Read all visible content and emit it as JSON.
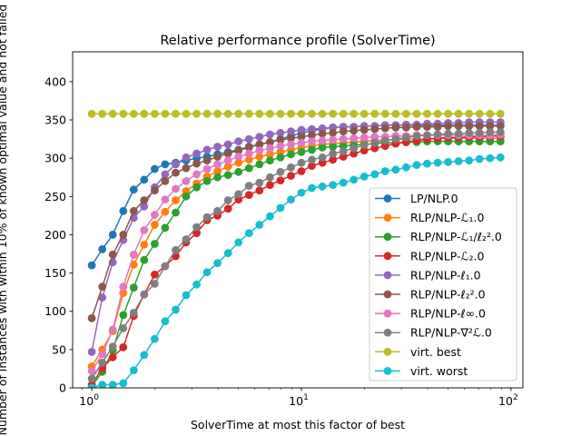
{
  "chart_data": {
    "type": "line",
    "title": "Relative performance profile (SolverTime)",
    "xlabel": "SolverTime at most this factor of best",
    "ylabel": "Number of instances with within 10% of known optimal value and not failed",
    "x_scale": "log",
    "xlim": [
      0.81,
      114
    ],
    "ylim": [
      0,
      439
    ],
    "x_ticks": [
      {
        "value": 1,
        "base": "10",
        "exp": "0"
      },
      {
        "value": 10,
        "base": "10",
        "exp": "1"
      },
      {
        "value": 100,
        "base": "10",
        "exp": "2"
      }
    ],
    "y_ticks": [
      0,
      50,
      100,
      150,
      200,
      250,
      300,
      350,
      400
    ],
    "grid": false,
    "legend_position": "lower-right",
    "x": [
      1,
      1.122,
      1.259,
      1.413,
      1.585,
      1.778,
      1.995,
      2.239,
      2.512,
      2.818,
      3.162,
      3.548,
      3.981,
      4.467,
      5.012,
      5.623,
      6.31,
      7.079,
      7.943,
      8.913,
      10,
      11.22,
      12.59,
      14.13,
      15.85,
      17.78,
      19.95,
      22.39,
      25.12,
      28.18,
      31.62,
      35.48,
      39.81,
      44.67,
      50.12,
      56.23,
      63.1,
      70.79,
      79.43,
      89.13
    ],
    "series": [
      {
        "name": "LP/NLP.0",
        "color": "#1f77b4",
        "values": [
          160,
          181,
          200,
          231,
          259,
          272,
          286,
          292,
          294,
          297,
          300,
          302,
          305,
          308,
          311,
          315,
          318,
          321,
          325,
          329,
          333,
          336,
          338,
          340,
          341,
          341,
          342,
          342,
          343,
          343,
          343,
          343,
          343,
          343,
          343,
          343,
          343,
          343,
          343,
          343
        ]
      },
      {
        "name": "RLP/NLP-ℒ₁.0",
        "color": "#ff7f0e",
        "values": [
          28,
          50,
          74,
          124,
          161,
          187,
          213,
          230,
          245,
          257,
          267,
          276,
          283,
          289,
          294,
          298,
          302,
          305,
          308,
          311,
          314,
          316,
          318,
          319,
          320,
          321,
          322,
          323,
          324,
          324,
          325,
          325,
          325,
          326,
          326,
          326,
          326,
          326,
          326,
          326
        ]
      },
      {
        "name": "RLP/NLP-ℒ₁/ℓ₂².0",
        "color": "#2ca02c",
        "values": [
          2,
          21,
          49,
          95,
          131,
          167,
          188,
          209,
          229,
          250,
          262,
          270,
          275,
          278,
          282,
          287,
          292,
          297,
          301,
          305,
          308,
          311,
          314,
          315,
          316,
          317,
          318,
          319,
          320,
          320,
          321,
          321,
          322,
          322,
          322,
          322,
          322,
          322,
          322,
          322
        ]
      },
      {
        "name": "RLP/NLP-ℒ₂.0",
        "color": "#d62728",
        "values": [
          4,
          26,
          40,
          53,
          94,
          122,
          148,
          159,
          172,
          190,
          202,
          219,
          225,
          234,
          246,
          252,
          258,
          265,
          271,
          277,
          283,
          290,
          294,
          298,
          302,
          306,
          310,
          313,
          316,
          319,
          321,
          323,
          325,
          326,
          327,
          327,
          328,
          328,
          329,
          329
        ]
      },
      {
        "name": "RLP/NLP-ℓ₁.0",
        "color": "#9467bd",
        "values": [
          47,
          118,
          164,
          193,
          222,
          237,
          262,
          279,
          292,
          301,
          306,
          311,
          315,
          318,
          322,
          325,
          328,
          331,
          333,
          335,
          337,
          338,
          339,
          340,
          341,
          341,
          342,
          342,
          343,
          343,
          344,
          344,
          345,
          345,
          346,
          346,
          347,
          347,
          347,
          347
        ]
      },
      {
        "name": "RLP/NLP-ℓ₂².0",
        "color": "#8c564b",
        "values": [
          91,
          132,
          174,
          200,
          231,
          245,
          258,
          270,
          281,
          287,
          293,
          297,
          302,
          306,
          310,
          314,
          318,
          321,
          324,
          326,
          328,
          330,
          332,
          333,
          335,
          336,
          337,
          338,
          339,
          340,
          340,
          341,
          341,
          341,
          342,
          342,
          342,
          342,
          342,
          342
        ]
      },
      {
        "name": "RLP/NLP-ℓ∞.0",
        "color": "#e377c2",
        "values": [
          22,
          44,
          76,
          132,
          174,
          206,
          226,
          246,
          260,
          270,
          279,
          286,
          292,
          297,
          302,
          306,
          310,
          313,
          316,
          318,
          320,
          322,
          323,
          324,
          325,
          326,
          327,
          328,
          328,
          329,
          329,
          330,
          330,
          330,
          330,
          330,
          330,
          330,
          330,
          331
        ]
      },
      {
        "name": "RLP/NLP-∇²ℒ.0",
        "color": "#7f7f7f",
        "values": [
          12,
          33,
          54,
          78,
          98,
          122,
          136,
          159,
          180,
          194,
          210,
          223,
          231,
          245,
          253,
          264,
          268,
          275,
          282,
          288,
          294,
          298,
          301,
          306,
          309,
          313,
          317,
          320,
          323,
          325,
          327,
          329,
          330,
          331,
          332,
          332,
          333,
          333,
          334,
          334
        ]
      },
      {
        "name": "virt. best",
        "color": "#bcbd22",
        "values": [
          358,
          358,
          358,
          358,
          358,
          358,
          358,
          358,
          358,
          358,
          358,
          358,
          358,
          358,
          358,
          358,
          358,
          358,
          358,
          358,
          358,
          358,
          358,
          358,
          358,
          358,
          358,
          358,
          358,
          358,
          358,
          358,
          358,
          358,
          358,
          358,
          358,
          358,
          358,
          358
        ]
      },
      {
        "name": "virt. worst",
        "color": "#17becf",
        "values": [
          0,
          4,
          4,
          6,
          23,
          43,
          64,
          87,
          102,
          121,
          135,
          151,
          163,
          176,
          190,
          202,
          213,
          224,
          235,
          246,
          255,
          261,
          263,
          265,
          268,
          272,
          276,
          279,
          283,
          285,
          288,
          291,
          293,
          294,
          295,
          296,
          297,
          299,
          300,
          301
        ]
      }
    ]
  }
}
